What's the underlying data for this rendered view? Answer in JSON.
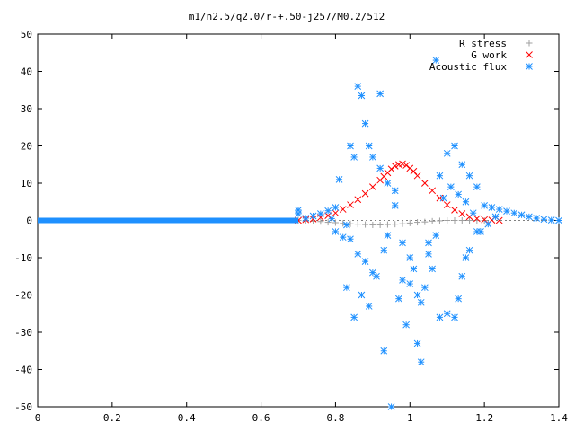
{
  "chart_data": {
    "type": "scatter",
    "title": "m1/n2.5/q2.0/r-+.50-j257/M0.2/512",
    "xlabel": "",
    "ylabel": "",
    "xlim": [
      0,
      1.4
    ],
    "ylim": [
      -50,
      50
    ],
    "xticks": [
      "0",
      "0.2",
      "0.4",
      "0.6",
      "0.8",
      "1",
      "1.2",
      "1.4"
    ],
    "yticks": [
      "50",
      "40",
      "30",
      "20",
      "10",
      "0",
      "-10",
      "-20",
      "-30",
      "-40",
      "-50"
    ],
    "grid": false,
    "legend_position": "top-right",
    "series": [
      {
        "name": "R stress",
        "marker": "plus",
        "color": "#a0a0a0",
        "points": [
          [
            0.7,
            0.0
          ],
          [
            0.72,
            -0.1
          ],
          [
            0.74,
            -0.2
          ],
          [
            0.76,
            -0.3
          ],
          [
            0.78,
            -0.5
          ],
          [
            0.8,
            -0.6
          ],
          [
            0.82,
            -0.8
          ],
          [
            0.84,
            -0.9
          ],
          [
            0.86,
            -1.0
          ],
          [
            0.88,
            -1.1
          ],
          [
            0.9,
            -1.2
          ],
          [
            0.92,
            -1.2
          ],
          [
            0.94,
            -1.1
          ],
          [
            0.96,
            -1.0
          ],
          [
            0.98,
            -0.9
          ],
          [
            1.0,
            -0.7
          ],
          [
            1.02,
            -0.5
          ],
          [
            1.04,
            -0.4
          ],
          [
            1.06,
            -0.2
          ],
          [
            1.08,
            -0.1
          ],
          [
            1.1,
            0.0
          ],
          [
            1.12,
            0.0
          ],
          [
            1.14,
            0.0
          ],
          [
            1.16,
            0.0
          ],
          [
            1.18,
            0.0
          ],
          [
            1.2,
            0.0
          ]
        ]
      },
      {
        "name": "G work",
        "marker": "cross",
        "color": "#ff0000",
        "points": [
          [
            0.7,
            0.0
          ],
          [
            0.72,
            0.2
          ],
          [
            0.74,
            0.4
          ],
          [
            0.76,
            0.8
          ],
          [
            0.78,
            1.3
          ],
          [
            0.8,
            2.0
          ],
          [
            0.82,
            3.0
          ],
          [
            0.84,
            4.2
          ],
          [
            0.86,
            5.6
          ],
          [
            0.88,
            7.2
          ],
          [
            0.9,
            9.0
          ],
          [
            0.92,
            10.8
          ],
          [
            0.93,
            11.8
          ],
          [
            0.94,
            12.8
          ],
          [
            0.95,
            13.8
          ],
          [
            0.96,
            14.6
          ],
          [
            0.97,
            15.0
          ],
          [
            0.98,
            15.2
          ],
          [
            0.99,
            14.8
          ],
          [
            1.0,
            14.0
          ],
          [
            1.01,
            13.2
          ],
          [
            1.02,
            12.0
          ],
          [
            1.04,
            10.0
          ],
          [
            1.06,
            8.0
          ],
          [
            1.08,
            6.0
          ],
          [
            1.1,
            4.2
          ],
          [
            1.12,
            2.8
          ],
          [
            1.14,
            1.8
          ],
          [
            1.16,
            1.0
          ],
          [
            1.18,
            0.5
          ],
          [
            1.2,
            0.2
          ],
          [
            1.22,
            0.1
          ],
          [
            1.24,
            0.0
          ]
        ]
      },
      {
        "name": "Acoustic flux",
        "marker": "star",
        "color": "#1e90ff",
        "points": [
          [
            0.7,
            2.8
          ],
          [
            0.7,
            1.8
          ],
          [
            0.72,
            0.6
          ],
          [
            0.74,
            1.2
          ],
          [
            0.76,
            1.8
          ],
          [
            0.78,
            2.6
          ],
          [
            0.8,
            3.5
          ],
          [
            0.79,
            0.5
          ],
          [
            0.81,
            11.0
          ],
          [
            0.8,
            -3.0
          ],
          [
            0.82,
            -4.5
          ],
          [
            0.83,
            -1.2
          ],
          [
            0.84,
            -5.0
          ],
          [
            0.85,
            -26.0
          ],
          [
            0.86,
            36.0
          ],
          [
            0.87,
            33.5
          ],
          [
            0.88,
            26.0
          ],
          [
            0.89,
            20.0
          ],
          [
            0.86,
            -9.0
          ],
          [
            0.83,
            -18.0
          ],
          [
            0.84,
            20.0
          ],
          [
            0.85,
            17.0
          ],
          [
            0.88,
            -11.0
          ],
          [
            0.9,
            -14.0
          ],
          [
            0.92,
            34.0
          ],
          [
            0.93,
            -35.0
          ],
          [
            0.94,
            -4.0
          ],
          [
            0.95,
            -50.0
          ],
          [
            0.96,
            8.0
          ],
          [
            0.98,
            -16.0
          ],
          [
            1.0,
            -17.0
          ],
          [
            1.02,
            -33.0
          ],
          [
            1.03,
            -38.0
          ],
          [
            1.05,
            -6.0
          ],
          [
            1.07,
            43.0
          ],
          [
            1.08,
            -26.0
          ],
          [
            1.1,
            -25.0
          ],
          [
            1.12,
            -26.0
          ],
          [
            1.13,
            -21.0
          ],
          [
            1.14,
            -15.0
          ],
          [
            1.15,
            -10.0
          ],
          [
            1.16,
            -8.0
          ],
          [
            1.18,
            -3.0
          ],
          [
            1.2,
            4.0
          ],
          [
            1.22,
            3.5
          ],
          [
            1.24,
            3.0
          ],
          [
            1.26,
            2.5
          ],
          [
            1.28,
            2.0
          ],
          [
            1.3,
            1.5
          ],
          [
            1.32,
            1.0
          ],
          [
            1.34,
            0.6
          ],
          [
            1.36,
            0.3
          ],
          [
            1.38,
            0.1
          ],
          [
            1.4,
            0.0
          ],
          [
            0.9,
            17.0
          ],
          [
            0.92,
            14.0
          ],
          [
            0.94,
            10.0
          ],
          [
            0.96,
            4.0
          ],
          [
            0.98,
            -6.0
          ],
          [
            1.0,
            -10.0
          ],
          [
            1.02,
            -20.0
          ],
          [
            1.04,
            -18.0
          ],
          [
            1.06,
            -13.0
          ],
          [
            1.08,
            12.0
          ],
          [
            1.1,
            18.0
          ],
          [
            1.12,
            20.0
          ],
          [
            1.14,
            15.0
          ],
          [
            1.16,
            12.0
          ],
          [
            1.18,
            9.0
          ],
          [
            1.19,
            -3.0
          ],
          [
            1.21,
            -1.0
          ],
          [
            1.23,
            1.0
          ],
          [
            0.87,
            -20.0
          ],
          [
            0.89,
            -23.0
          ],
          [
            0.91,
            -15.0
          ],
          [
            0.93,
            -8.0
          ],
          [
            0.97,
            -21.0
          ],
          [
            0.99,
            -28.0
          ],
          [
            1.01,
            -13.0
          ],
          [
            1.03,
            -22.0
          ],
          [
            1.05,
            -9.0
          ],
          [
            1.07,
            -4.0
          ],
          [
            1.09,
            6.0
          ],
          [
            1.11,
            9.0
          ],
          [
            1.13,
            7.0
          ],
          [
            1.15,
            5.0
          ],
          [
            1.17,
            2.0
          ]
        ]
      },
      {
        "name": "Acoustic flux baseline",
        "marker": "star",
        "color": "#1e90ff",
        "baseline": {
          "x_start": 0.0,
          "x_end": 0.7,
          "y": 0.0
        }
      }
    ]
  }
}
